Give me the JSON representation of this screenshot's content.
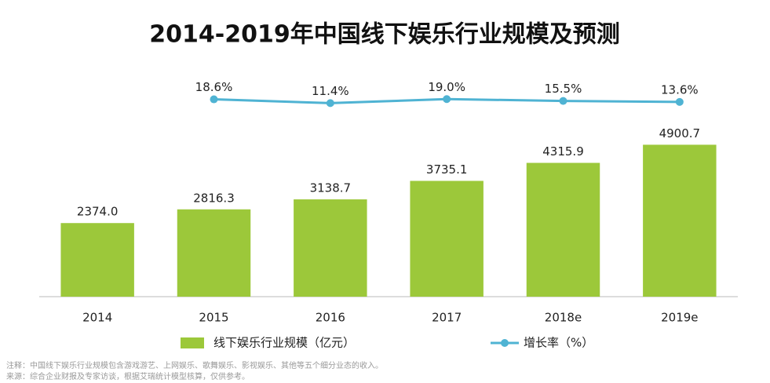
{
  "chart_data": {
    "type": "bar",
    "title": "2014-2019年中国线下娱乐行业规模及预测",
    "categories": [
      "2014",
      "2015",
      "2016",
      "2017",
      "2018e",
      "2019e"
    ],
    "series": [
      {
        "name": "线下娱乐行业规模（亿元）",
        "type": "bar",
        "color": "#9cc83a",
        "values": [
          2374.0,
          2816.3,
          3138.7,
          3735.1,
          4315.9,
          4900.7
        ],
        "value_labels": [
          "2374.0",
          "2816.3",
          "3138.7",
          "3735.1",
          "4315.9",
          "4900.7"
        ]
      },
      {
        "name": "增长率（%）",
        "type": "line",
        "axis": "y2",
        "color": "#4fb3d3",
        "values": [
          null,
          18.6,
          11.4,
          19.0,
          15.5,
          13.6
        ],
        "value_labels": [
          null,
          "18.6%",
          "11.4%",
          "19.0%",
          "15.5%",
          "13.6%"
        ]
      }
    ],
    "ylim": [
      0,
      6000
    ],
    "y2lim": [
      0,
      100
    ],
    "legend": "bottom",
    "notes": [
      "注释：中国线下娱乐行业规模包含游戏游艺、上网娱乐、歌舞娱乐、影视娱乐、其他等五个细分业态的收入。",
      "来源：综合企业财报及专家访谈，根据艾瑞统计模型核算，仅供参考。"
    ]
  }
}
